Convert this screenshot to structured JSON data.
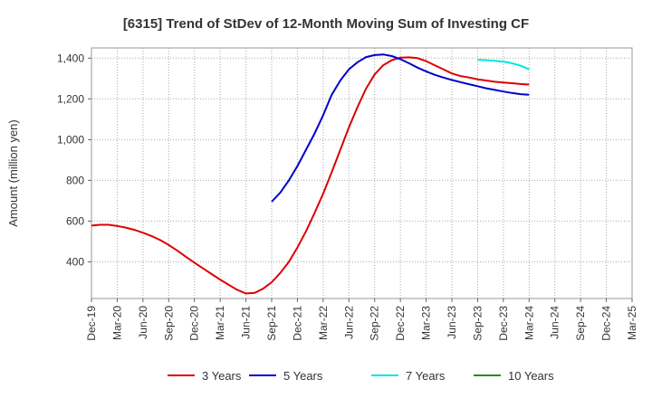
{
  "chart_data": {
    "type": "line",
    "title": "[6315]  Trend of StDev of 12-Month Moving Sum of Investing CF",
    "xlabel": "",
    "ylabel": "Amount (million yen)",
    "x_ticks": [
      "Dec-19",
      "Mar-20",
      "Jun-20",
      "Sep-20",
      "Dec-20",
      "Mar-21",
      "Jun-21",
      "Sep-21",
      "Dec-21",
      "Mar-22",
      "Jun-22",
      "Sep-22",
      "Dec-22",
      "Mar-23",
      "Jun-23",
      "Sep-23",
      "Dec-23",
      "Mar-24",
      "Jun-24",
      "Sep-24",
      "Dec-24",
      "Mar-25"
    ],
    "y_ticks": [
      400,
      600,
      800,
      1000,
      1200,
      1400
    ],
    "ylim": [
      220,
      1450
    ],
    "grid": true,
    "legend_position": "bottom",
    "series": [
      {
        "name": "3 Years",
        "color": "#dd0000",
        "x": [
          "2019-12",
          "2020-01",
          "2020-02",
          "2020-03",
          "2020-04",
          "2020-05",
          "2020-06",
          "2020-07",
          "2020-08",
          "2020-09",
          "2020-10",
          "2020-11",
          "2020-12",
          "2021-01",
          "2021-02",
          "2021-03",
          "2021-04",
          "2021-05",
          "2021-06",
          "2021-07",
          "2021-08",
          "2021-09",
          "2021-10",
          "2021-11",
          "2021-12",
          "2022-01",
          "2022-02",
          "2022-03",
          "2022-04",
          "2022-05",
          "2022-06",
          "2022-07",
          "2022-08",
          "2022-09",
          "2022-10",
          "2022-11",
          "2022-12",
          "2023-01",
          "2023-02",
          "2023-03",
          "2023-04",
          "2023-05",
          "2023-06",
          "2023-07",
          "2023-08",
          "2023-09",
          "2023-10",
          "2023-11",
          "2023-12",
          "2024-01",
          "2024-02",
          "2024-03"
        ],
        "values": [
          578,
          582,
          582,
          576,
          568,
          557,
          543,
          527,
          507,
          483,
          455,
          425,
          396,
          368,
          340,
          313,
          287,
          262,
          245,
          247,
          268,
          300,
          345,
          400,
          470,
          550,
          640,
          735,
          840,
          950,
          1060,
          1160,
          1250,
          1320,
          1365,
          1390,
          1402,
          1404,
          1400,
          1385,
          1365,
          1345,
          1325,
          1312,
          1305,
          1296,
          1290,
          1284,
          1280,
          1277,
          1273,
          1270
        ]
      },
      {
        "name": "5 Years",
        "color": "#0000cc",
        "x": [
          "2021-09",
          "2021-10",
          "2021-11",
          "2021-12",
          "2022-01",
          "2022-02",
          "2022-03",
          "2022-04",
          "2022-05",
          "2022-06",
          "2022-07",
          "2022-08",
          "2022-09",
          "2022-10",
          "2022-11",
          "2022-12",
          "2023-01",
          "2023-02",
          "2023-03",
          "2023-04",
          "2023-05",
          "2023-06",
          "2023-07",
          "2023-08",
          "2023-09",
          "2023-10",
          "2023-11",
          "2023-12",
          "2024-01",
          "2024-02",
          "2024-03"
        ],
        "values": [
          695,
          740,
          800,
          870,
          950,
          1030,
          1120,
          1220,
          1290,
          1345,
          1380,
          1405,
          1415,
          1418,
          1410,
          1395,
          1375,
          1353,
          1335,
          1318,
          1305,
          1293,
          1282,
          1272,
          1262,
          1252,
          1244,
          1236,
          1229,
          1223,
          1220
        ]
      },
      {
        "name": "7 Years",
        "color": "#00e5e5",
        "x": [
          "2023-09",
          "2023-10",
          "2023-11",
          "2023-12",
          "2024-01",
          "2024-02",
          "2024-03"
        ],
        "values": [
          1392,
          1390,
          1387,
          1383,
          1375,
          1363,
          1345
        ]
      },
      {
        "name": "10 Years",
        "color": "#228b22",
        "x": [],
        "values": []
      }
    ]
  }
}
